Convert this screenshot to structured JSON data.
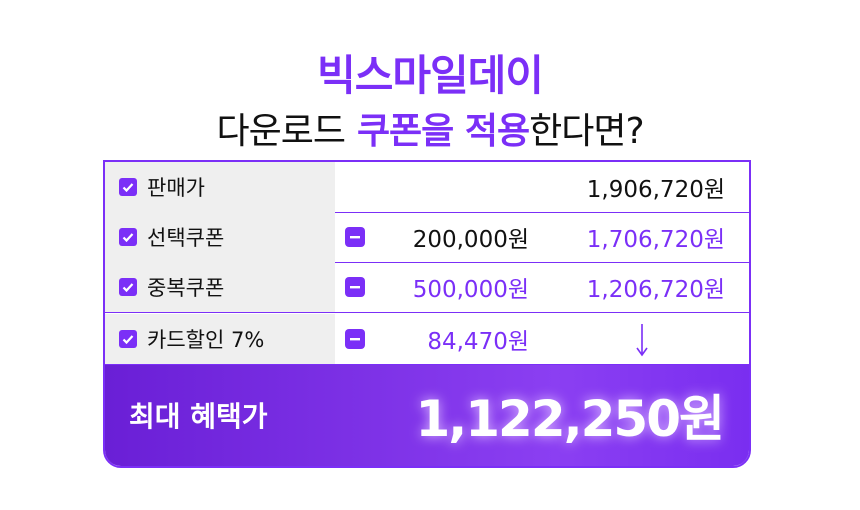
{
  "header": {
    "title": "빅스마일데이",
    "subtitle": {
      "before": "다운로드",
      "highlight": "쿠폰을 적용",
      "after": "한다면?"
    }
  },
  "table": {
    "rows": [
      {
        "label": "판매가",
        "price": "1,906,720원"
      },
      {
        "label": "선택쿠폰",
        "discount": "200,000원",
        "price": "1,706,720원"
      },
      {
        "label": "중복쿠폰",
        "discount": "500,000원",
        "price": "1,206,720원"
      },
      {
        "label": "카드할인 7%",
        "discount": "84,470원"
      }
    ]
  },
  "total": {
    "label": "최대 혜택가",
    "price": "1,122,250원"
  }
}
